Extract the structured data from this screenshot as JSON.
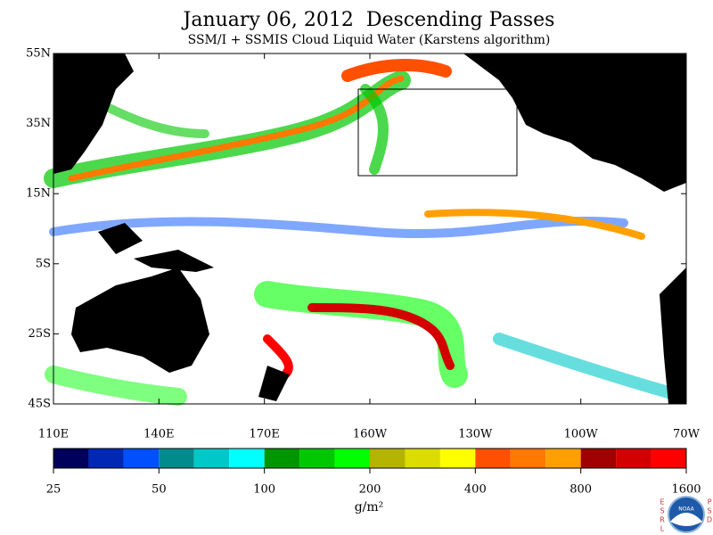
{
  "header": {
    "title": "January 06, 2012  Descending Passes",
    "subtitle": "SSM/I + SSMIS Cloud Liquid Water (Karstens algorithm)"
  },
  "map": {
    "lat_labels": [
      "55N",
      "35N",
      "15N",
      "5S",
      "25S",
      "45S"
    ],
    "lon_labels": [
      "110E",
      "140E",
      "170E",
      "160W",
      "130W",
      "100W",
      "70W"
    ]
  },
  "colorbar": {
    "colors": [
      "#00005a",
      "#0028b4",
      "#0050ff",
      "#008c8c",
      "#00c8c8",
      "#00ffff",
      "#009600",
      "#00c800",
      "#00ff00",
      "#b4b400",
      "#dcdc00",
      "#ffff00",
      "#ff5000",
      "#ff7800",
      "#ffa000",
      "#a00000",
      "#d20000",
      "#ff0000"
    ],
    "ticks": [
      25,
      50,
      100,
      200,
      400,
      800,
      1600
    ],
    "unit": "g/m²"
  },
  "logo": {
    "left": [
      "E",
      "S",
      "R",
      "L"
    ],
    "center": "NOAA",
    "right": [
      "P",
      "S",
      "D"
    ]
  }
}
